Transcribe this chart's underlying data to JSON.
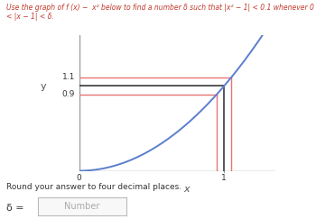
{
  "curve_color": "#5b7fcc",
  "hline_y1": 1.1,
  "hline_y2": 0.9,
  "hline_ymid": 1.0,
  "hline_color_outer": "#e87474",
  "hline_color_mid": "#3a3a3a",
  "vline_x1": 0.9486832980505138,
  "vline_x2": 1.0488088481701516,
  "vline_xmid": 1.0,
  "vline_color_outer": "#e87474",
  "vline_color_mid": "#3a3a3a",
  "axis_spine_color": "#999999",
  "x_label": "x",
  "y_label": "y",
  "xlim": [
    0.0,
    1.35
  ],
  "ylim": [
    0.0,
    1.6
  ],
  "bottom_text": "Round your answer to four decimal places.",
  "delta_label": "δ =",
  "input_placeholder": "Number",
  "bg_color": "#ffffff",
  "title_color": "#c0392b",
  "label_color": "#555555",
  "tick_color": "#333333"
}
